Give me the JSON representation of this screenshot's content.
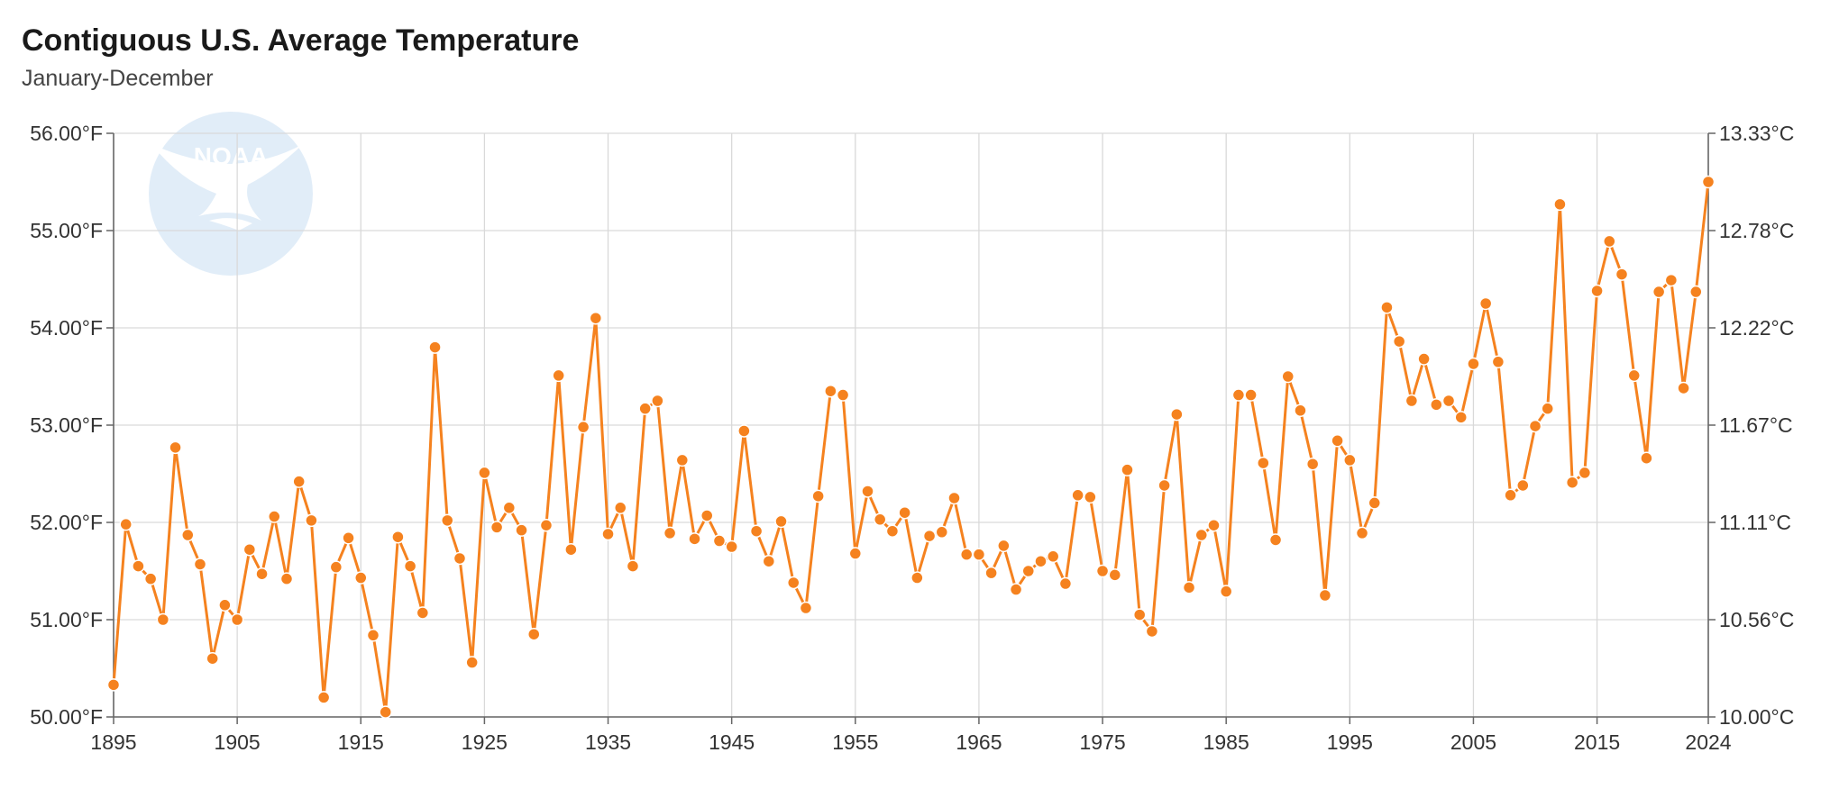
{
  "chart_data": {
    "type": "line",
    "title": "Contiguous U.S. Average Temperature",
    "subtitle": "January-December",
    "xlabel": "",
    "ylabel": "",
    "xlim": [
      1895,
      2024
    ],
    "ylim": [
      50,
      56
    ],
    "y2lim": [
      10.0,
      13.33
    ],
    "grid": true,
    "legend": "none",
    "line_color": "#f5821f",
    "logo_text": "NOAA",
    "x_ticks": [
      "1895",
      "1905",
      "1915",
      "1925",
      "1935",
      "1945",
      "1955",
      "1965",
      "1975",
      "1985",
      "1995",
      "2005",
      "2015",
      "2024"
    ],
    "y_ticks": [
      "50.00°F",
      "51.00°F",
      "52.00°F",
      "53.00°F",
      "54.00°F",
      "55.00°F",
      "56.00°F"
    ],
    "y2_ticks": [
      "10.00°C",
      "10.56°C",
      "11.11°C",
      "11.67°C",
      "12.22°C",
      "12.78°C",
      "13.33°C"
    ],
    "series": [
      {
        "x": [
          1895,
          1896,
          1897,
          1898,
          1899,
          1900,
          1901,
          1902,
          1903,
          1904,
          1905,
          1906,
          1907,
          1908,
          1909,
          1910,
          1911,
          1912,
          1913,
          1914,
          1915,
          1916,
          1917,
          1918,
          1919,
          1920,
          1921,
          1922,
          1923,
          1924,
          1925,
          1926,
          1927,
          1928,
          1929,
          1930,
          1931,
          1932,
          1933,
          1934,
          1935,
          1936,
          1937,
          1938,
          1939,
          1940,
          1941,
          1942,
          1943,
          1944,
          1945,
          1946,
          1947,
          1948,
          1949,
          1950,
          1951,
          1952,
          1953,
          1954,
          1955,
          1956,
          1957,
          1958,
          1959,
          1960,
          1961,
          1962,
          1963,
          1964,
          1965,
          1966,
          1967,
          1968,
          1969,
          1970,
          1971,
          1972,
          1973,
          1974,
          1975,
          1976,
          1977,
          1978,
          1979,
          1980,
          1981,
          1982,
          1983,
          1984,
          1985,
          1986,
          1987,
          1988,
          1989,
          1990,
          1991,
          1992,
          1993,
          1994,
          1995,
          1996,
          1997,
          1998,
          1999,
          2000,
          2001,
          2002,
          2003,
          2004,
          2005,
          2006,
          2007,
          2008,
          2009,
          2010,
          2011,
          2012,
          2013,
          2014,
          2015,
          2016,
          2017,
          2018,
          2019,
          2020,
          2021,
          2022,
          2023,
          2024
        ],
        "values": [
          50.33,
          51.98,
          51.55,
          51.42,
          51.0,
          52.77,
          51.87,
          51.57,
          50.6,
          51.15,
          51.0,
          51.72,
          51.47,
          52.06,
          51.42,
          52.42,
          52.02,
          50.2,
          51.54,
          51.84,
          51.43,
          50.84,
          50.05,
          51.85,
          51.55,
          51.07,
          53.8,
          52.02,
          51.63,
          50.56,
          52.51,
          51.95,
          52.15,
          51.92,
          50.85,
          51.97,
          53.51,
          51.72,
          52.98,
          54.1,
          51.88,
          52.15,
          51.55,
          53.17,
          53.25,
          51.89,
          52.64,
          51.83,
          52.07,
          51.81,
          51.75,
          52.94,
          51.91,
          51.6,
          52.01,
          51.38,
          51.12,
          52.27,
          53.35,
          53.31,
          51.68,
          52.32,
          52.03,
          51.91,
          52.1,
          51.43,
          51.86,
          51.9,
          52.25,
          51.67,
          51.67,
          51.48,
          51.76,
          51.31,
          51.5,
          51.6,
          51.65,
          51.37,
          52.28,
          52.26,
          51.5,
          51.46,
          52.54,
          51.05,
          50.88,
          52.38,
          53.11,
          51.33,
          51.87,
          51.97,
          51.29,
          53.31,
          53.31,
          52.61,
          51.82,
          53.5,
          53.15,
          52.6,
          51.25,
          52.84,
          52.64,
          51.89,
          52.2,
          54.21,
          53.86,
          53.25,
          53.68,
          53.21,
          53.25,
          53.08,
          53.63,
          54.25,
          53.65,
          52.28,
          52.38,
          52.99,
          53.17,
          55.27,
          52.41,
          52.51,
          54.38,
          54.89,
          54.55,
          53.51,
          52.66,
          54.37,
          54.49,
          53.38,
          54.37,
          55.5
        ]
      }
    ]
  }
}
